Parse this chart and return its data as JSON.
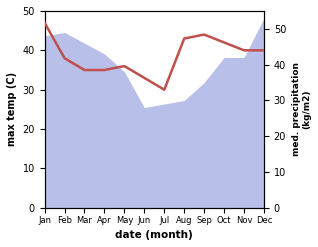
{
  "months": [
    "Jan",
    "Feb",
    "Mar",
    "Apr",
    "May",
    "Jun",
    "Jul",
    "Aug",
    "Sep",
    "Oct",
    "Nov",
    "Dec"
  ],
  "temp": [
    47,
    38,
    35,
    35,
    36,
    33,
    30,
    43,
    44,
    42,
    40,
    40
  ],
  "precip": [
    48,
    49,
    46,
    43,
    38,
    28,
    29,
    30,
    35,
    42,
    42,
    53
  ],
  "temp_color": "#c0504d",
  "precip_fill_color": "#b8bfe8",
  "ylabel_left": "max temp (C)",
  "ylabel_right": "med. precipitation\n(kg/m2)",
  "xlabel": "date (month)",
  "ylim_left": [
    0,
    50
  ],
  "ylim_right": [
    0,
    55
  ],
  "bg_color": "#ffffff"
}
